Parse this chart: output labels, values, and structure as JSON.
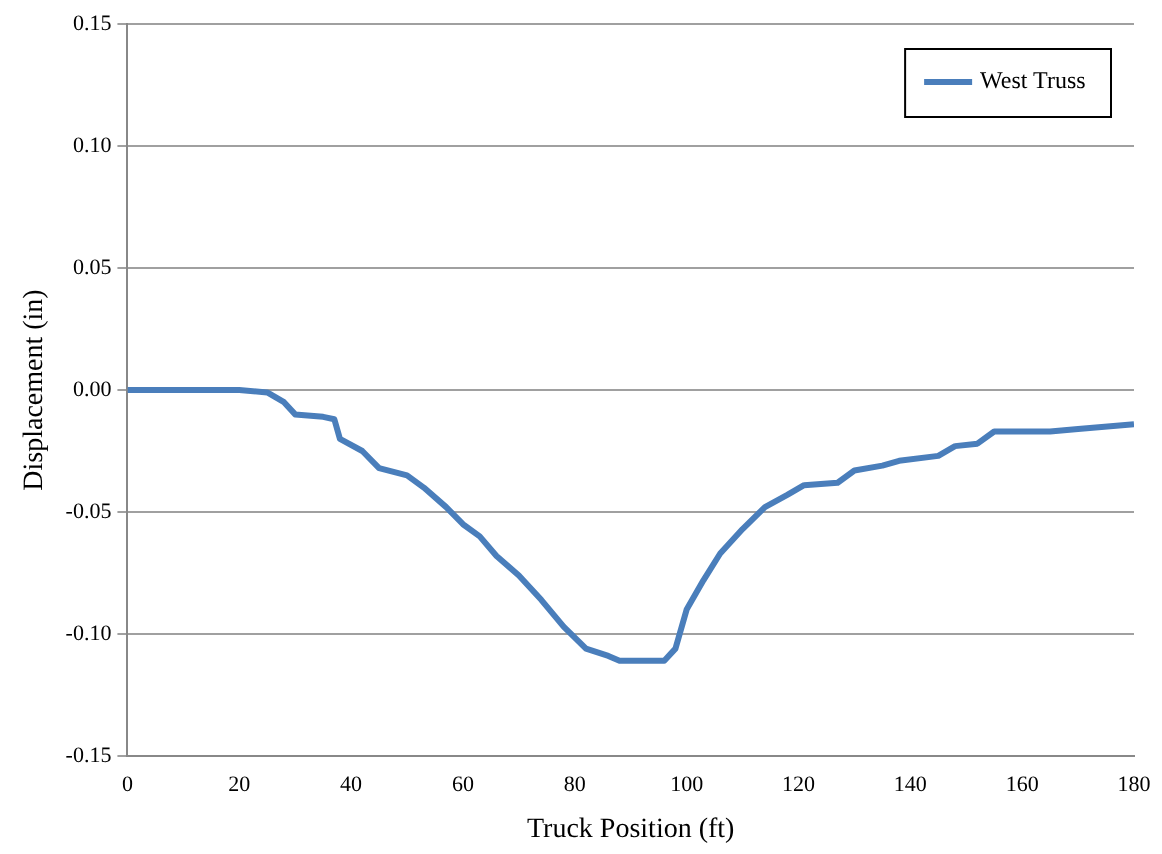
{
  "chart_data": {
    "type": "line",
    "xlabel": "Truck Position (ft)",
    "ylabel": "Displacement (in)",
    "x": [
      0,
      10,
      20,
      25,
      28,
      30,
      35,
      37,
      38,
      42,
      45,
      50,
      53,
      57,
      60,
      63,
      66,
      70,
      74,
      78,
      82,
      86,
      88,
      92,
      96,
      98,
      100,
      103,
      106,
      110,
      114,
      118,
      121,
      127,
      130,
      135,
      138,
      145,
      148,
      152,
      155,
      165,
      170,
      180
    ],
    "series": [
      {
        "name": "West Truss",
        "color": "#4a7ebb",
        "values": [
          0,
          0,
          0,
          -0.001,
          -0.005,
          -0.01,
          -0.011,
          -0.012,
          -0.02,
          -0.025,
          -0.032,
          -0.035,
          -0.04,
          -0.048,
          -0.055,
          -0.06,
          -0.068,
          -0.076,
          -0.086,
          -0.097,
          -0.106,
          -0.109,
          -0.111,
          -0.111,
          -0.111,
          -0.106,
          -0.09,
          -0.078,
          -0.067,
          -0.057,
          -0.048,
          -0.043,
          -0.039,
          -0.038,
          -0.033,
          -0.031,
          -0.029,
          -0.027,
          -0.023,
          -0.022,
          -0.017,
          -0.017,
          -0.016,
          -0.014
        ]
      }
    ],
    "xlim": [
      0,
      180
    ],
    "xticks": [
      0,
      20,
      40,
      60,
      80,
      100,
      120,
      140,
      160,
      180
    ],
    "ylim": [
      -0.15,
      0.15
    ],
    "yticks": [
      -0.15,
      {
        "value": -0.1,
        "label": "-0.10"
      },
      -0.05,
      {
        "value": 0,
        "label": "0.00"
      },
      0.05,
      {
        "value": 0.1,
        "label": "0.10"
      },
      0.15
    ],
    "grid": "y",
    "legend": "top right",
    "marker": "none",
    "line_style": "solid"
  }
}
